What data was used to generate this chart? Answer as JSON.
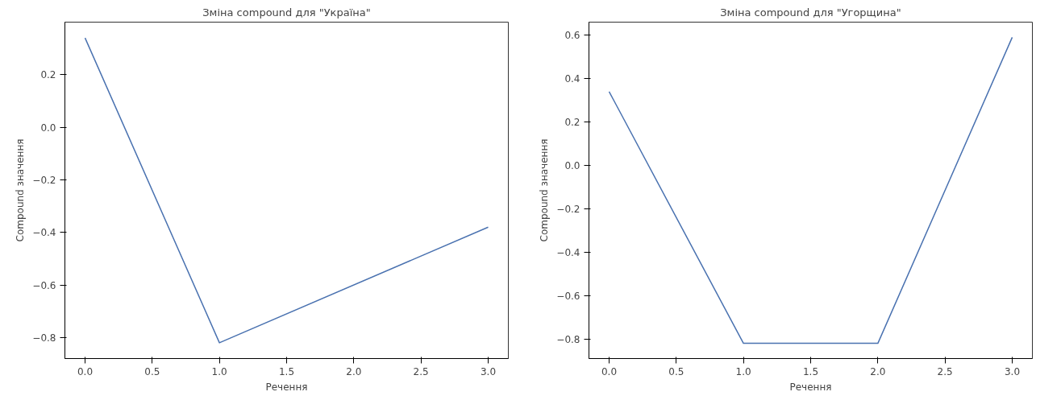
{
  "chart_data": [
    {
      "type": "line",
      "title": "Зміна compound для \"Україна\"",
      "xlabel": "Речення",
      "ylabel": "Compound значення",
      "series": [
        {
          "color": "#4a72b0",
          "x": [
            0,
            1,
            3
          ],
          "values": [
            0.34,
            -0.82,
            -0.38
          ]
        }
      ],
      "xlim": [
        -0.15,
        3.15
      ],
      "ylim": [
        -0.88,
        0.4
      ],
      "xticks": [
        {
          "value": 0,
          "label": "0.0"
        },
        0.5,
        {
          "value": 1,
          "label": "1.0"
        },
        1.5,
        {
          "value": 2,
          "label": "2.0"
        },
        2.5,
        {
          "value": 3,
          "label": "3.0"
        }
      ],
      "yticks": [
        {
          "value": -0.8,
          "label": "−0.8"
        },
        {
          "value": -0.6,
          "label": "−0.6"
        },
        {
          "value": -0.4,
          "label": "−0.4"
        },
        {
          "value": -0.2,
          "label": "−0.2"
        },
        {
          "value": 0,
          "label": "0.0"
        },
        0.2
      ],
      "grid": false
    },
    {
      "type": "line",
      "title": "Зміна compound для \"Угорщина\"",
      "xlabel": "Речення",
      "ylabel": "Compound значення",
      "x": [
        0,
        1,
        2,
        3
      ],
      "series": [
        {
          "color": "#4a72b0",
          "values": [
            0.34,
            -0.82,
            -0.82,
            0.59
          ]
        }
      ],
      "xlim": [
        -0.15,
        3.15
      ],
      "ylim": [
        -0.89,
        0.66
      ],
      "xticks": [
        {
          "value": 0,
          "label": "0.0"
        },
        0.5,
        {
          "value": 1,
          "label": "1.0"
        },
        1.5,
        {
          "value": 2,
          "label": "2.0"
        },
        2.5,
        {
          "value": 3,
          "label": "3.0"
        }
      ],
      "yticks": [
        {
          "value": -0.8,
          "label": "−0.8"
        },
        {
          "value": -0.6,
          "label": "−0.6"
        },
        {
          "value": -0.4,
          "label": "−0.4"
        },
        {
          "value": -0.2,
          "label": "−0.2"
        },
        {
          "value": 0,
          "label": "0.0"
        },
        0.2,
        0.4,
        0.6
      ],
      "grid": false
    }
  ]
}
